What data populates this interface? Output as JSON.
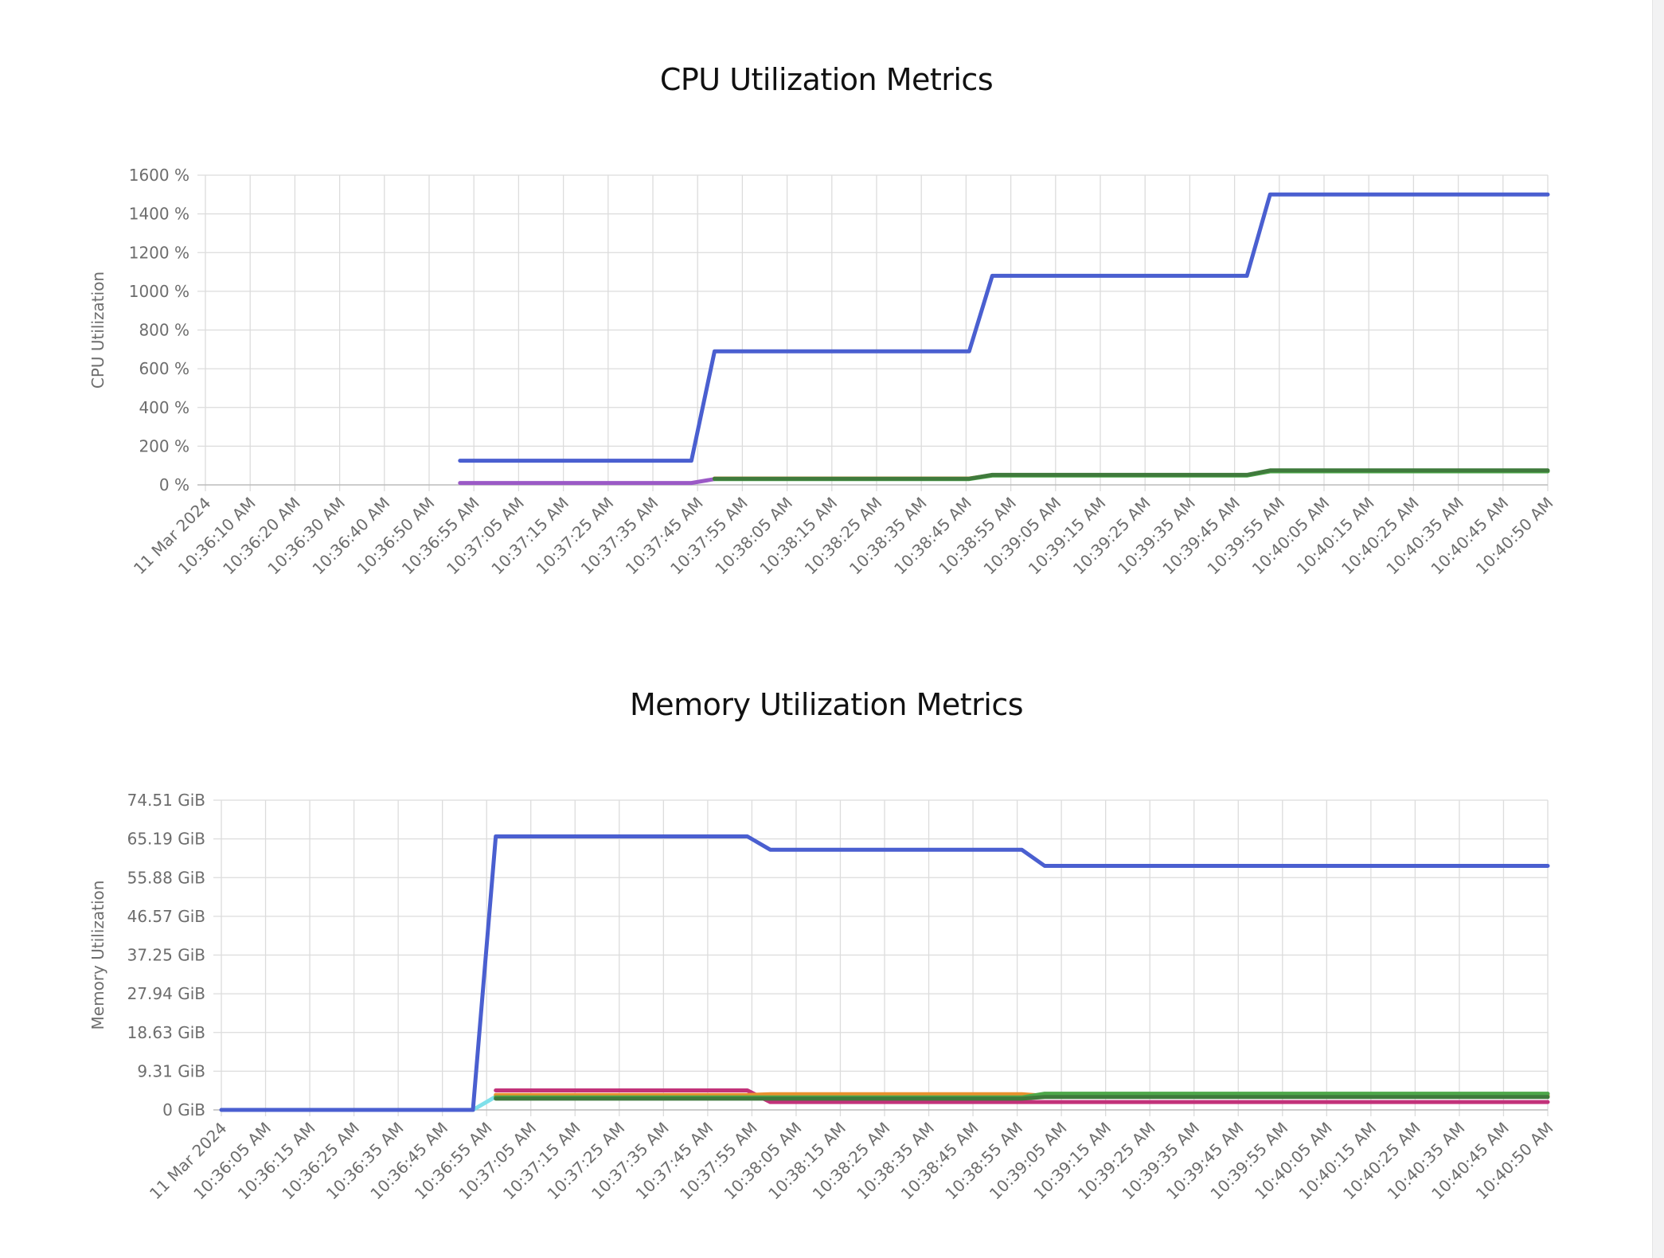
{
  "chart_data": [
    {
      "id": "cpu",
      "type": "line",
      "title": "CPU Utilization Metrics",
      "ylabel": "CPU Utilization",
      "ylim": [
        0,
        1600
      ],
      "y_ticks": [
        "0 %",
        "200 %",
        "400 %",
        "600 %",
        "800 %",
        "1000 %",
        "1200 %",
        "1400 %",
        "1600 %"
      ],
      "x_ticks": [
        "11 Mar 2024",
        "10:36:10 AM",
        "10:36:20 AM",
        "10:36:30 AM",
        "10:36:40 AM",
        "10:36:50 AM",
        "10:36:55 AM",
        "10:37:05 AM",
        "10:37:15 AM",
        "10:37:25 AM",
        "10:37:35 AM",
        "10:37:45 AM",
        "10:37:55 AM",
        "10:38:05 AM",
        "10:38:15 AM",
        "10:38:25 AM",
        "10:38:35 AM",
        "10:38:45 AM",
        "10:38:55 AM",
        "10:39:05 AM",
        "10:39:15 AM",
        "10:39:25 AM",
        "10:39:35 AM",
        "10:39:45 AM",
        "10:39:55 AM",
        "10:40:05 AM",
        "10:40:15 AM",
        "10:40:25 AM",
        "10:40:35 AM",
        "10:40:45 AM",
        "10:40:50 AM"
      ],
      "grid": true,
      "legend": "none",
      "series": [
        {
          "color": "#4a5fd0",
          "x": [
            "10:36:55 AM",
            "10:37:45 AM",
            "10:37:50 AM",
            "10:38:45 AM",
            "10:38:50 AM",
            "10:39:45 AM",
            "10:39:50 AM",
            "10:40:50 AM"
          ],
          "values": [
            125,
            125,
            690,
            690,
            1080,
            1080,
            1500,
            1500
          ]
        },
        {
          "color": "#9b59c6",
          "x": [
            "10:36:55 AM",
            "10:37:45 AM",
            "10:37:50 AM"
          ],
          "values": [
            10,
            10,
            30
          ]
        },
        {
          "color": "#e89230",
          "x": [
            "10:37:50 AM",
            "10:38:45 AM",
            "10:38:50 AM",
            "10:39:45 AM",
            "10:39:50 AM",
            "10:40:50 AM"
          ],
          "values": [
            33,
            33,
            50,
            50,
            72,
            72
          ]
        },
        {
          "color": "#4ea84a",
          "x": [
            "10:37:50 AM",
            "10:38:45 AM",
            "10:38:50 AM",
            "10:39:45 AM",
            "10:39:50 AM",
            "10:40:50 AM"
          ],
          "values": [
            30,
            30,
            48,
            48,
            70,
            70
          ]
        },
        {
          "color": "#3f7a3c",
          "x": [
            "10:37:50 AM",
            "10:38:45 AM",
            "10:38:50 AM",
            "10:39:45 AM",
            "10:39:50 AM",
            "10:40:50 AM"
          ],
          "values": [
            32,
            32,
            52,
            52,
            75,
            75
          ]
        }
      ]
    },
    {
      "id": "mem",
      "type": "line",
      "title": "Memory Utilization Metrics",
      "ylabel": "Memory Utilization",
      "ylim": [
        0,
        74.51
      ],
      "y_ticks": [
        "0 GiB",
        "9.31 GiB",
        "18.63 GiB",
        "27.94 GiB",
        "37.25 GiB",
        "46.57 GiB",
        "55.88 GiB",
        "65.19 GiB",
        "74.51 GiB"
      ],
      "x_ticks": [
        "11 Mar 2024",
        "10:36:05 AM",
        "10:36:15 AM",
        "10:36:25 AM",
        "10:36:35 AM",
        "10:36:45 AM",
        "10:36:55 AM",
        "10:37:05 AM",
        "10:37:15 AM",
        "10:37:25 AM",
        "10:37:35 AM",
        "10:37:45 AM",
        "10:37:55 AM",
        "10:38:05 AM",
        "10:38:15 AM",
        "10:38:25 AM",
        "10:38:35 AM",
        "10:38:45 AM",
        "10:38:55 AM",
        "10:39:05 AM",
        "10:39:15 AM",
        "10:39:25 AM",
        "10:39:35 AM",
        "10:39:45 AM",
        "10:39:55 AM",
        "10:40:05 AM",
        "10:40:15 AM",
        "10:40:25 AM",
        "10:40:35 AM",
        "10:40:45 AM",
        "10:40:50 AM"
      ],
      "grid": true,
      "legend": "none",
      "series": [
        {
          "color": "#7fe0ea",
          "x": [
            "10:36:55 AM",
            "10:37:00 AM"
          ],
          "values": [
            0,
            3.2
          ]
        },
        {
          "color": "#4a5fd0",
          "x": [
            "10:36:00 AM",
            "10:36:55 AM",
            "10:37:00 AM",
            "10:37:55 AM",
            "10:38:00 AM",
            "10:38:55 AM",
            "10:39:00 AM",
            "10:40:50 AM"
          ],
          "values": [
            0,
            0,
            65.8,
            65.8,
            62.6,
            62.6,
            58.7,
            58.7
          ]
        },
        {
          "color": "#c2327a",
          "x": [
            "10:37:00 AM",
            "10:37:55 AM",
            "10:38:00 AM",
            "10:40:50 AM"
          ],
          "values": [
            4.7,
            4.7,
            1.9,
            1.9
          ]
        },
        {
          "color": "#e89230",
          "x": [
            "10:37:00 AM",
            "10:37:55 AM",
            "10:38:00 AM",
            "10:38:55 AM",
            "10:39:00 AM",
            "10:40:50 AM"
          ],
          "values": [
            3.6,
            3.6,
            3.8,
            3.8,
            3.4,
            3.4
          ]
        },
        {
          "color": "#4ea84a",
          "x": [
            "10:37:00 AM",
            "10:38:55 AM",
            "10:39:00 AM",
            "10:40:50 AM"
          ],
          "values": [
            3.0,
            3.0,
            3.9,
            3.9
          ]
        },
        {
          "color": "#3f7a3c",
          "x": [
            "10:37:00 AM",
            "10:38:55 AM",
            "10:39:00 AM",
            "10:40:50 AM"
          ],
          "values": [
            2.7,
            2.7,
            3.1,
            3.1
          ]
        }
      ]
    }
  ]
}
